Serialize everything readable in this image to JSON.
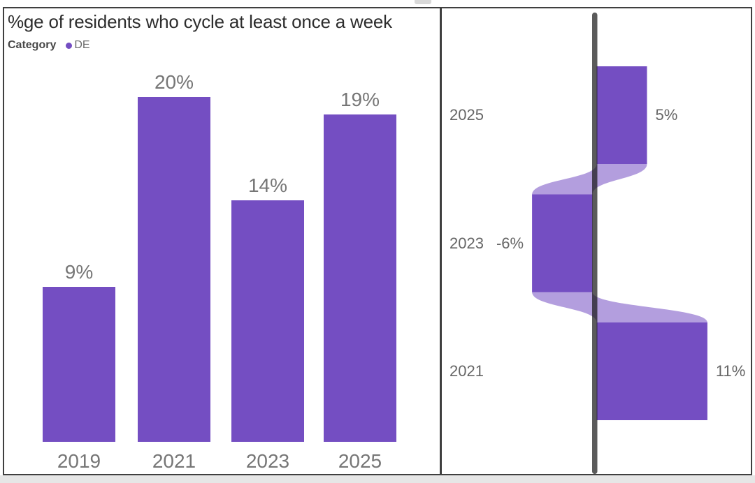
{
  "window": {
    "background": "#ffffff",
    "frame_border_color": "#3f3f3f",
    "artifact_color": "#d9d9d9",
    "bottom_strip_color": "#e6e6e6"
  },
  "chart_data": [
    {
      "type": "bar",
      "panel": "left",
      "title": "%ge of residents who cycle at least once a week",
      "legend": {
        "field": "Category",
        "position": "top-left",
        "entries": [
          {
            "label": "DE",
            "color": "#744ec2"
          }
        ]
      },
      "categories": [
        "2019",
        "2021",
        "2023",
        "2025"
      ],
      "values": [
        9,
        20,
        14,
        19
      ],
      "data_labels": [
        "9%",
        "20%",
        "14%",
        "19%"
      ],
      "xlabel": "",
      "ylabel": "",
      "ylim": [
        0,
        25
      ],
      "grid": false,
      "bar_color": "#744ec2",
      "label_color": "#767676",
      "title_color": "#2d2d2d"
    },
    {
      "type": "bar",
      "panel": "right",
      "subtype": "ribbon-change",
      "orientation": "horizontal",
      "title": "",
      "categories": [
        "2025",
        "2023",
        "2021"
      ],
      "values": [
        5,
        -6,
        11
      ],
      "data_labels": [
        "5%",
        "-6%",
        "11%"
      ],
      "baseline": 0,
      "connectors": true,
      "grid": false,
      "bar_color": "#744ec2",
      "connector_opacity": 0.55,
      "axis_line_color_rgba": "rgba(22,22,22,0.70)",
      "label_color": "#666666"
    }
  ]
}
